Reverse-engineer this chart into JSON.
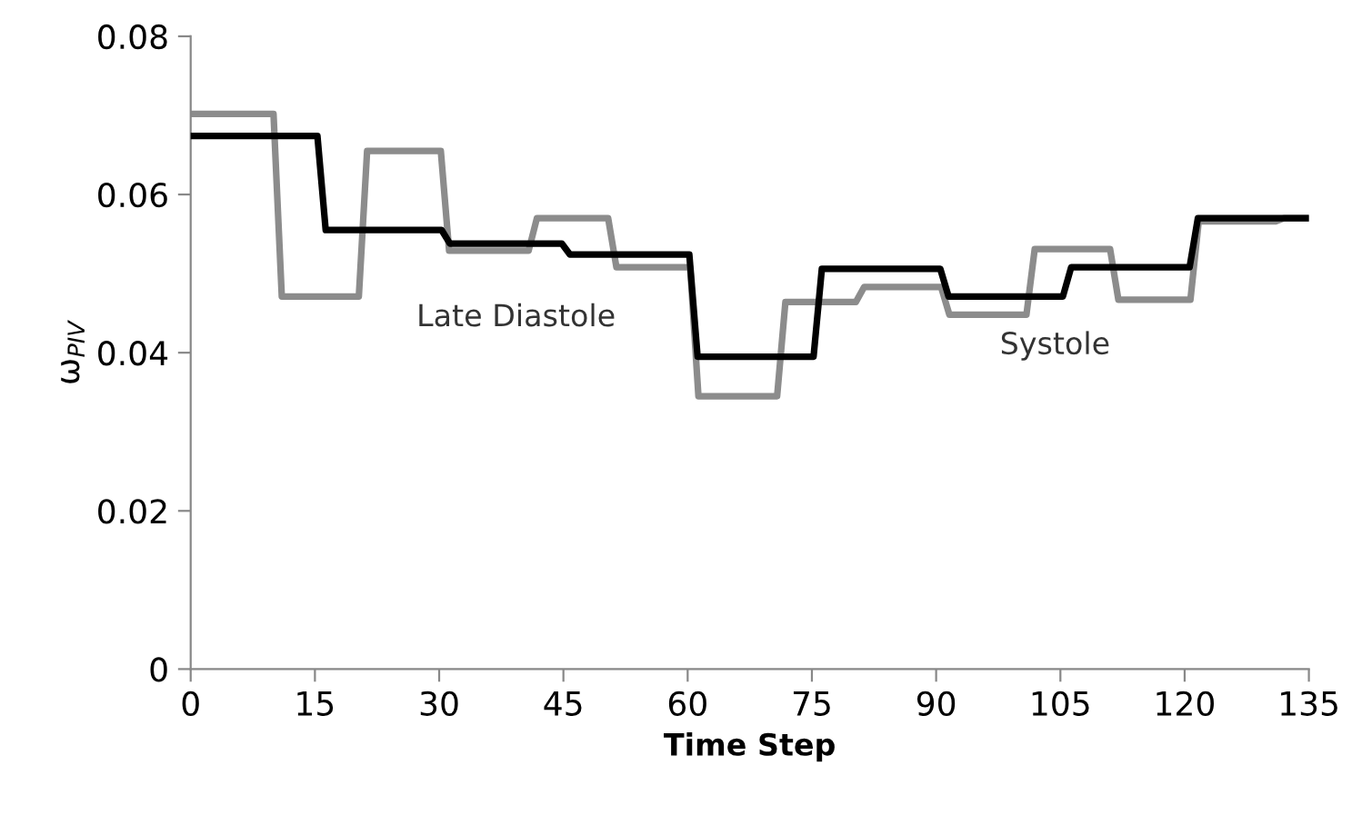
{
  "chart_data": {
    "type": "line",
    "xlabel": "Time Step",
    "ylabel": "ω$_{PIV}$",
    "xlim": [
      0,
      135
    ],
    "xticks": [
      0,
      15,
      30,
      45,
      60,
      75,
      90,
      105,
      120,
      135
    ],
    "ylim": [
      0,
      0.08
    ],
    "yticks": [
      {
        "value": 0,
        "label": "0"
      },
      {
        "value": 0.02,
        "label": "0.02"
      },
      {
        "value": 0.04,
        "label": "0.04"
      },
      {
        "value": 0.06,
        "label": "0.06"
      },
      {
        "value": 0.08,
        "label": "0.08"
      }
    ],
    "grid": false,
    "line_style": "solid",
    "marker": "none",
    "annotations": [
      "Late Diastole",
      "Systole"
    ],
    "series": [
      {
        "color": "#000000",
        "x": [
          0,
          15.3,
          16.3,
          30.3,
          31.3,
          44.8,
          45.8,
          60.2,
          61.2,
          75.2,
          76.2,
          90.5,
          91.5,
          105.3,
          106.3,
          120.6,
          121.6,
          135
        ],
        "values": [
          0.0674,
          0.0674,
          0.0555,
          0.0555,
          0.0538,
          0.0538,
          0.0524,
          0.0524,
          0.0395,
          0.0395,
          0.0506,
          0.0506,
          0.0471,
          0.0471,
          0.0508,
          0.0508,
          0.057,
          0.057
        ]
      },
      {
        "color": "#8c8c8c",
        "x": [
          0,
          10,
          11,
          20.3,
          21.3,
          30.2,
          31.2,
          40.8,
          41.8,
          50.4,
          51.4,
          60.3,
          61.3,
          70.8,
          71.8,
          80.3,
          81.3,
          90.6,
          91.6,
          100.9,
          101.9,
          111,
          112,
          120.7,
          121.7,
          131,
          132,
          135
        ],
        "values": [
          0.0702,
          0.0702,
          0.0471,
          0.0471,
          0.0655,
          0.0655,
          0.0529,
          0.0529,
          0.057,
          0.057,
          0.0508,
          0.0508,
          0.0345,
          0.0345,
          0.0464,
          0.0464,
          0.0483,
          0.0483,
          0.0448,
          0.0448,
          0.0531,
          0.0531,
          0.0467,
          0.0467,
          0.0566,
          0.0566,
          0.057,
          0.057
        ]
      }
    ]
  }
}
